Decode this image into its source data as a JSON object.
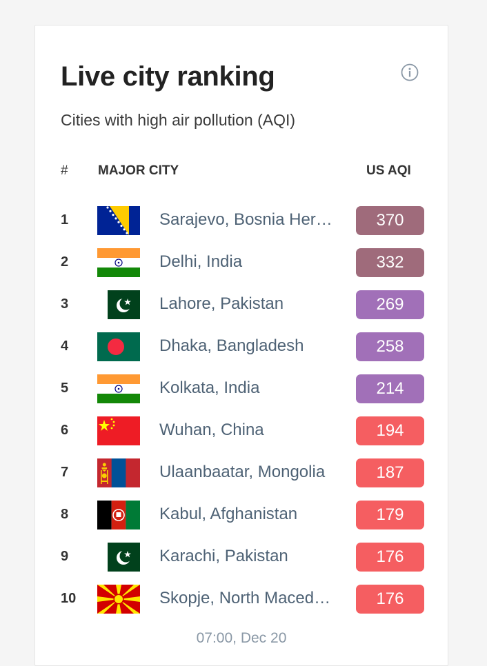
{
  "header": {
    "title": "Live city ranking",
    "subtitle": "Cities with high air pollution (AQI)",
    "info_icon": "info-icon"
  },
  "table": {
    "columns": {
      "rank": "#",
      "city": "MAJOR CITY",
      "aqi": "US AQI"
    },
    "rows": [
      {
        "rank": "1",
        "city": "Sarajevo, Bosnia Herzegovina",
        "aqi": "370",
        "flag": "bosnia",
        "color": "#9f6b7b"
      },
      {
        "rank": "2",
        "city": "Delhi, India",
        "aqi": "332",
        "flag": "india",
        "color": "#9f6b7b"
      },
      {
        "rank": "3",
        "city": "Lahore, Pakistan",
        "aqi": "269",
        "flag": "pakistan",
        "color": "#a170b8"
      },
      {
        "rank": "4",
        "city": "Dhaka, Bangladesh",
        "aqi": "258",
        "flag": "bangladesh",
        "color": "#a170b8"
      },
      {
        "rank": "5",
        "city": "Kolkata, India",
        "aqi": "214",
        "flag": "india",
        "color": "#a170b8"
      },
      {
        "rank": "6",
        "city": "Wuhan, China",
        "aqi": "194",
        "flag": "china",
        "color": "#f55e61"
      },
      {
        "rank": "7",
        "city": "Ulaanbaatar, Mongolia",
        "aqi": "187",
        "flag": "mongolia",
        "color": "#f55e61"
      },
      {
        "rank": "8",
        "city": "Kabul, Afghanistan",
        "aqi": "179",
        "flag": "afghanistan",
        "color": "#f55e61"
      },
      {
        "rank": "9",
        "city": "Karachi, Pakistan",
        "aqi": "176",
        "flag": "pakistan",
        "color": "#f55e61"
      },
      {
        "rank": "10",
        "city": "Skopje, North Macedonia",
        "aqi": "176",
        "flag": "macedonia",
        "color": "#f55e61"
      }
    ]
  },
  "footer": {
    "timestamp": "07:00, Dec 20"
  }
}
